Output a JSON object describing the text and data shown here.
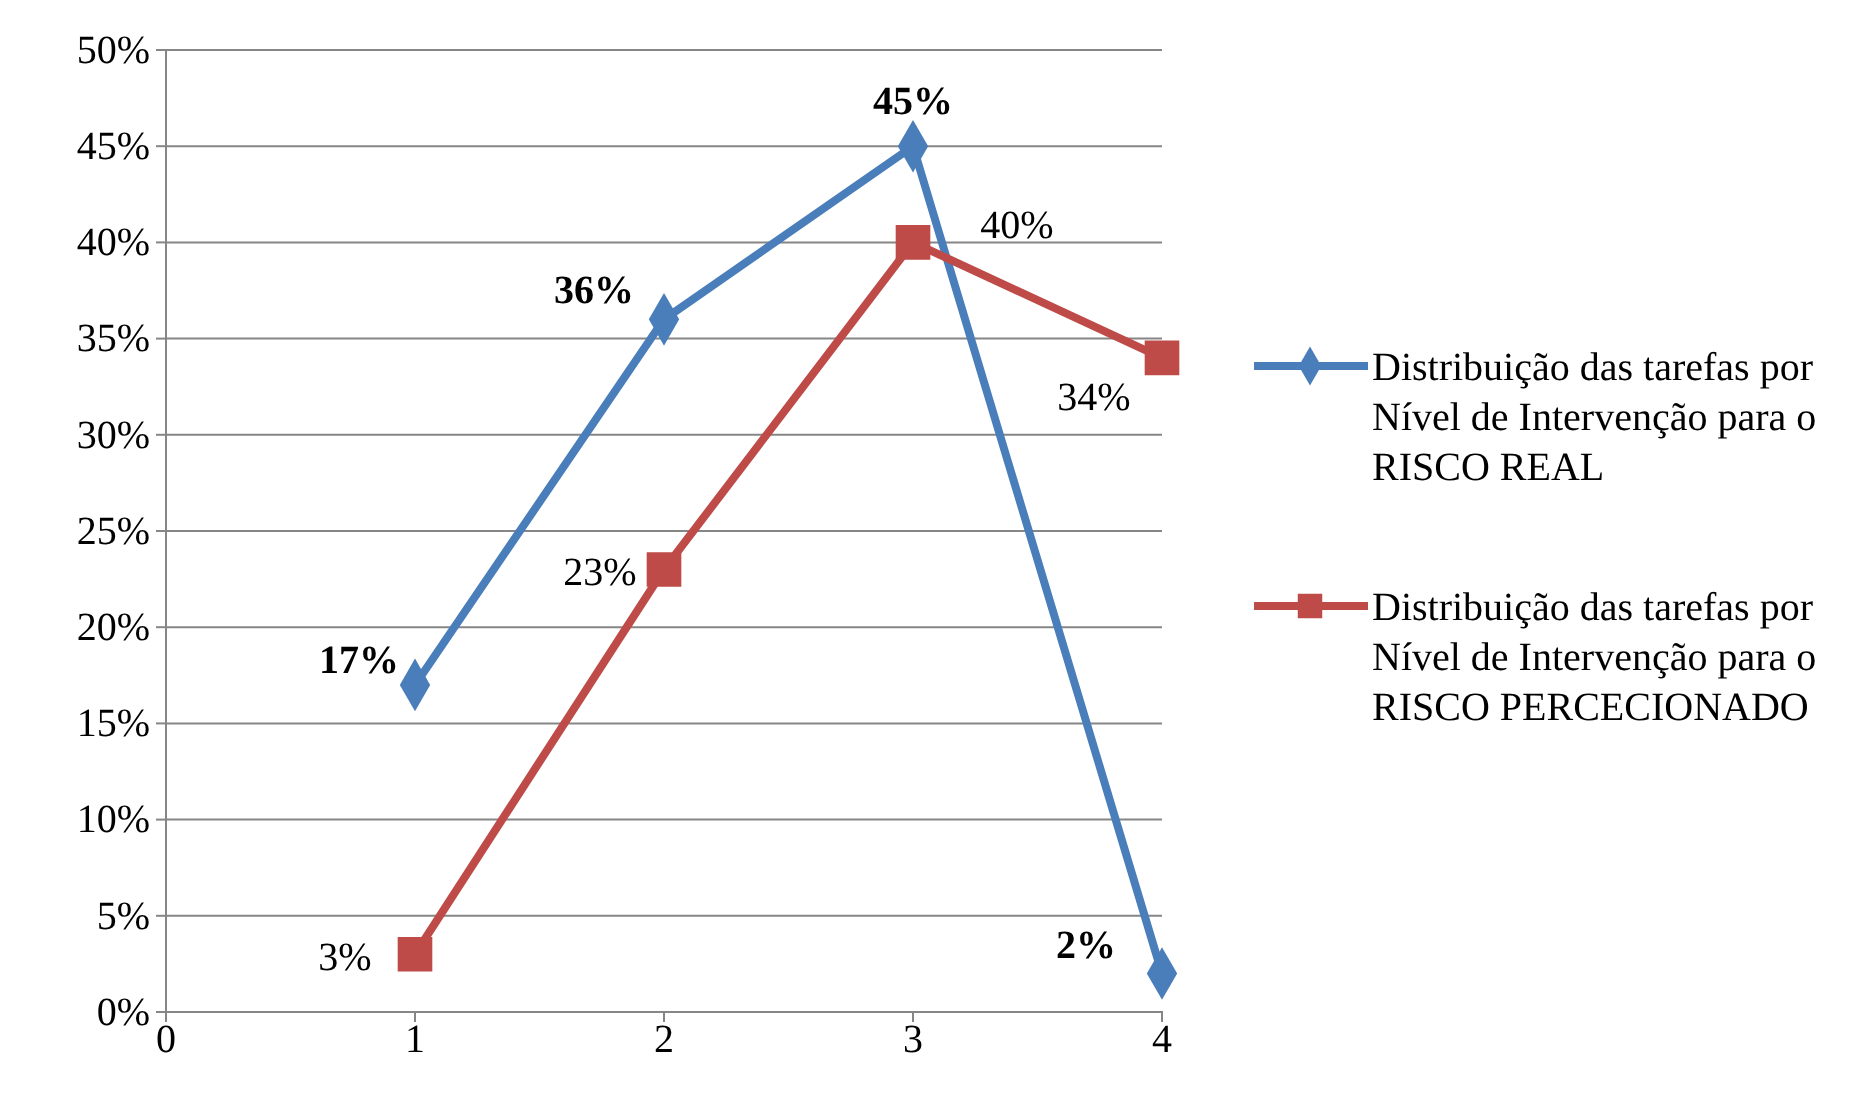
{
  "chart_data": {
    "type": "line",
    "x": [
      1,
      2,
      3,
      4
    ],
    "xlim": [
      0,
      4
    ],
    "xticks": [
      0,
      1,
      2,
      3,
      4
    ],
    "ylim": [
      0,
      50
    ],
    "yticks": [
      {
        "value": 0,
        "label": "0%"
      },
      {
        "value": 5,
        "label": "5%"
      },
      {
        "value": 10,
        "label": "10%"
      },
      {
        "value": 15,
        "label": "15%"
      },
      {
        "value": 20,
        "label": "20%"
      },
      {
        "value": 25,
        "label": "25%"
      },
      {
        "value": 30,
        "label": "30%"
      },
      {
        "value": 35,
        "label": "35%"
      },
      {
        "value": 40,
        "label": "40%"
      },
      {
        "value": 45,
        "label": "45%"
      },
      {
        "value": 50,
        "label": "50%"
      }
    ],
    "grid": "y",
    "legend": "right",
    "line_style": "solid",
    "series": [
      {
        "name": "Distribuição das tarefas por Nível de Intervenção para o RISCO REAL",
        "color": "#4a7ebb",
        "marker": "diamond",
        "values": [
          17,
          36,
          45,
          2
        ],
        "value_labels": [
          "17%",
          "36%",
          "45%",
          "2%"
        ]
      },
      {
        "name": "Distribuição das tarefas por Nível de Intervenção para o RISCO PERCECIONADO",
        "color": "#be4b48",
        "marker": "square",
        "values": [
          3,
          23,
          40,
          34
        ],
        "value_labels": [
          "3%",
          "23%",
          "40%",
          "34%"
        ]
      }
    ]
  }
}
